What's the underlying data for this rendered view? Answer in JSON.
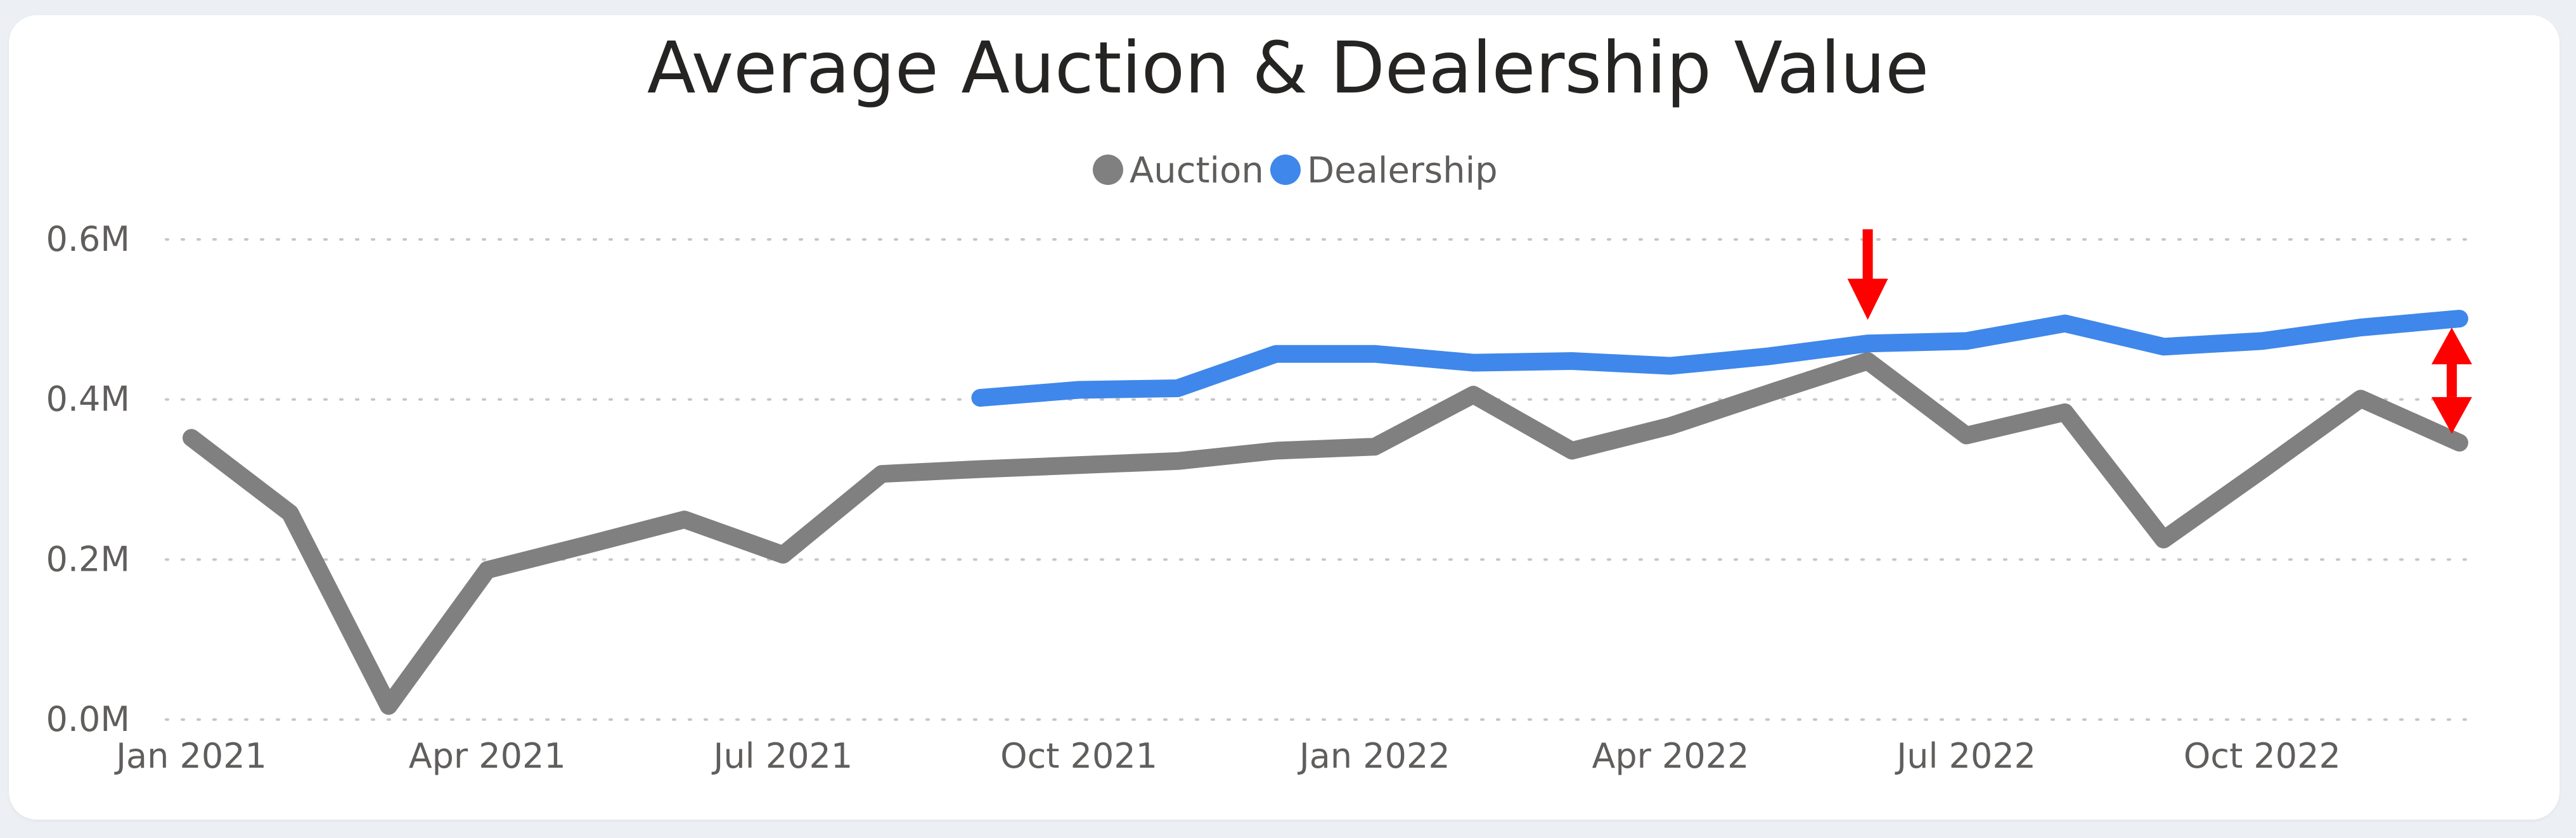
{
  "chart_data": {
    "type": "line",
    "title": "Average Auction & Dealership Value",
    "xlabel": "",
    "ylabel": "",
    "ylim": [
      0,
      0.6
    ],
    "y_ticks": [
      {
        "value": 0.0,
        "label": "0.0M"
      },
      {
        "value": 0.2,
        "label": "0.2M"
      },
      {
        "value": 0.4,
        "label": "0.4M"
      },
      {
        "value": 0.6,
        "label": "0.6M"
      }
    ],
    "x": [
      "2021-01",
      "2021-02",
      "2021-03",
      "2021-04",
      "2021-05",
      "2021-06",
      "2021-07",
      "2021-08",
      "2021-09",
      "2021-10",
      "2021-11",
      "2021-12",
      "2022-01",
      "2022-02",
      "2022-03",
      "2022-04",
      "2022-05",
      "2022-06",
      "2022-07",
      "2022-08",
      "2022-09",
      "2022-10",
      "2022-11",
      "2022-12"
    ],
    "x_ticks": [
      {
        "x": "2021-01",
        "label": "Jan 2021"
      },
      {
        "x": "2021-04",
        "label": "Apr 2021"
      },
      {
        "x": "2021-07",
        "label": "Jul 2021"
      },
      {
        "x": "2021-10",
        "label": "Oct 2021"
      },
      {
        "x": "2022-01",
        "label": "Jan 2022"
      },
      {
        "x": "2022-04",
        "label": "Apr 2022"
      },
      {
        "x": "2022-07",
        "label": "Jul 2022"
      },
      {
        "x": "2022-10",
        "label": "Oct 2022"
      }
    ],
    "series": [
      {
        "name": "Auction",
        "color": "#808080",
        "values": [
          0.352,
          0.258,
          0.017,
          0.187,
          0.218,
          0.25,
          0.206,
          0.307,
          0.313,
          0.318,
          0.323,
          0.336,
          0.341,
          0.406,
          0.336,
          0.367,
          0.408,
          0.448,
          0.355,
          0.384,
          0.225,
          0.312,
          0.401,
          0.346
        ]
      },
      {
        "name": "Dealership",
        "color": "#3f87ea",
        "values": [
          null,
          null,
          null,
          null,
          null,
          null,
          null,
          null,
          0.402,
          0.412,
          0.414,
          0.457,
          0.457,
          0.446,
          0.448,
          0.442,
          0.454,
          0.47,
          0.473,
          0.495,
          0.466,
          0.473,
          0.49,
          0.501
        ]
      }
    ],
    "grid": true,
    "legend_position": "top-center",
    "annotations": [
      {
        "type": "down-arrow",
        "x": "2022-06",
        "color": "#ff0000"
      },
      {
        "type": "double-arrow",
        "x": "2022-12",
        "from_series": "Auction",
        "to_series": "Dealership",
        "color": "#ff0000"
      }
    ]
  }
}
